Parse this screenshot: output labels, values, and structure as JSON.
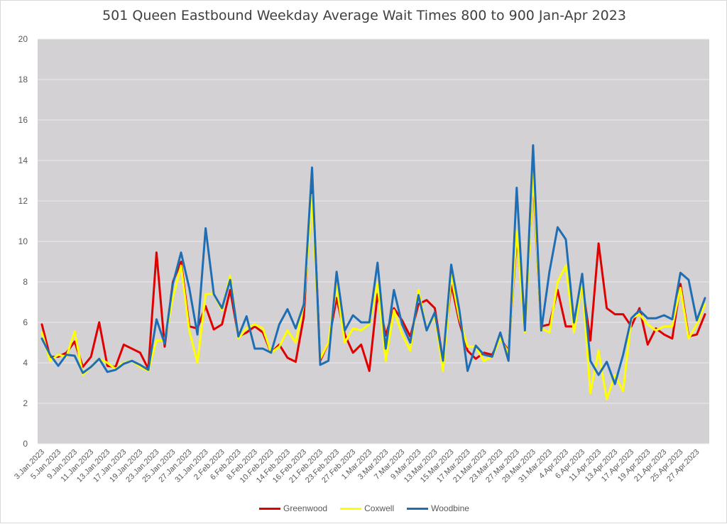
{
  "chart_data": {
    "type": "line",
    "title": "501 Queen Eastbound Weekday Average Wait Times 800 to 900 Jan-Apr 2023",
    "xlabel": "",
    "ylabel": "",
    "ylim": [
      0,
      20
    ],
    "yticks": [
      0,
      2,
      4,
      6,
      8,
      10,
      12,
      14,
      16,
      18,
      20
    ],
    "grid": true,
    "legend_position": "bottom",
    "tick_labels": [
      "3.Jan.2023",
      "5.Jan.2023",
      "9.Jan.2023",
      "11.Jan.2023",
      "13.Jan.2023",
      "17.Jan.2023",
      "19.Jan.2023",
      "23.Jan.2023",
      "25.Jan.2023",
      "27.Jan.2023",
      "31.Jan.2023",
      "2.Feb.2023",
      "6.Feb.2023",
      "8.Feb.2023",
      "10.Feb.2023",
      "14.Feb.2023",
      "16.Feb.2023",
      "21.Feb.2023",
      "23.Feb.2023",
      "27.Feb.2023",
      "1.Mar.2023",
      "3.Mar.2023",
      "7.Mar.2023",
      "9.Mar.2023",
      "13.Mar.2023",
      "15.Mar.2023",
      "17.Mar.2023",
      "21.Mar.2023",
      "23.Mar.2023",
      "27.Mar.2023",
      "29.Mar.2023",
      "31.Mar.2023",
      "4.Apr.2023",
      "6.Apr.2023",
      "11.Apr.2023",
      "13.Apr.2023",
      "17.Apr.2023",
      "19.Apr.2023",
      "21.Apr.2023",
      "25.Apr.2023",
      "27.Apr.2023"
    ],
    "series": [
      {
        "name": "Greenwood",
        "color": "#e00000",
        "values": [
          5.9,
          4.3,
          4.3,
          4.5,
          5.05,
          3.8,
          4.3,
          6.0,
          3.85,
          3.8,
          4.9,
          4.7,
          4.5,
          3.7,
          9.45,
          4.8,
          8.0,
          9.0,
          5.8,
          5.7,
          6.8,
          5.65,
          5.9,
          7.6,
          5.3,
          5.5,
          5.8,
          5.5,
          4.5,
          4.9,
          4.25,
          4.05,
          6.3,
          13.4,
          4.1,
          5.0,
          7.2,
          5.4,
          4.5,
          4.9,
          3.6,
          7.4,
          5.35,
          6.7,
          6.1,
          5.3,
          6.9,
          7.1,
          6.7,
          4.1,
          7.9,
          6.0,
          4.6,
          4.2,
          4.5,
          4.4,
          5.2,
          4.6,
          10.2,
          6.1,
          13.0,
          5.8,
          5.9,
          7.6,
          5.8,
          5.8,
          7.9,
          5.1,
          9.9,
          6.7,
          6.4,
          6.4,
          5.8,
          6.7,
          4.9,
          5.7,
          5.4,
          5.2,
          7.9,
          5.3,
          5.4,
          6.4
        ]
      },
      {
        "name": "Coxwell",
        "color": "#ffff00",
        "values": [
          5.5,
          4.1,
          4.4,
          4.3,
          5.55,
          3.4,
          3.8,
          4.2,
          4.0,
          3.7,
          4.0,
          4.1,
          3.8,
          3.6,
          5.1,
          5.1,
          7.2,
          8.8,
          5.6,
          4.0,
          7.4,
          7.4,
          6.6,
          8.3,
          5.2,
          5.7,
          5.9,
          5.7,
          4.5,
          4.8,
          5.6,
          5.0,
          6.9,
          12.3,
          4.2,
          5.0,
          7.8,
          5.0,
          5.7,
          5.6,
          5.9,
          7.9,
          4.1,
          6.6,
          5.4,
          4.6,
          7.6,
          5.6,
          6.4,
          3.6,
          8.3,
          6.2,
          4.8,
          4.8,
          4.1,
          4.3,
          5.2,
          4.5,
          10.5,
          5.5,
          13.3,
          5.7,
          5.5,
          8.0,
          8.8,
          5.5,
          8.0,
          2.5,
          4.6,
          2.2,
          3.4,
          2.6,
          6.2,
          6.4,
          5.9,
          5.6,
          5.8,
          5.8,
          7.7,
          5.2,
          5.9,
          6.9
        ]
      },
      {
        "name": "Woodbine",
        "color": "#1f6eb4",
        "values": [
          5.2,
          4.4,
          3.85,
          4.4,
          4.35,
          3.5,
          3.8,
          4.2,
          3.55,
          3.65,
          3.95,
          4.1,
          3.9,
          3.65,
          6.15,
          4.95,
          7.9,
          9.45,
          7.7,
          5.4,
          10.65,
          7.4,
          6.7,
          8.1,
          5.3,
          6.3,
          4.7,
          4.7,
          4.5,
          5.9,
          6.65,
          5.7,
          6.9,
          13.65,
          3.9,
          4.1,
          8.5,
          5.6,
          6.35,
          6.0,
          6.0,
          8.95,
          4.7,
          7.6,
          5.9,
          5.0,
          7.35,
          5.6,
          6.5,
          4.1,
          8.85,
          6.6,
          3.6,
          4.85,
          4.4,
          4.3,
          5.5,
          4.1,
          12.65,
          5.6,
          14.75,
          5.6,
          8.5,
          10.7,
          10.1,
          6.0,
          8.4,
          4.1,
          3.4,
          4.05,
          2.95,
          4.4,
          6.2,
          6.6,
          6.2,
          6.2,
          6.35,
          6.15,
          8.45,
          8.1,
          6.1,
          7.2
        ]
      }
    ]
  }
}
